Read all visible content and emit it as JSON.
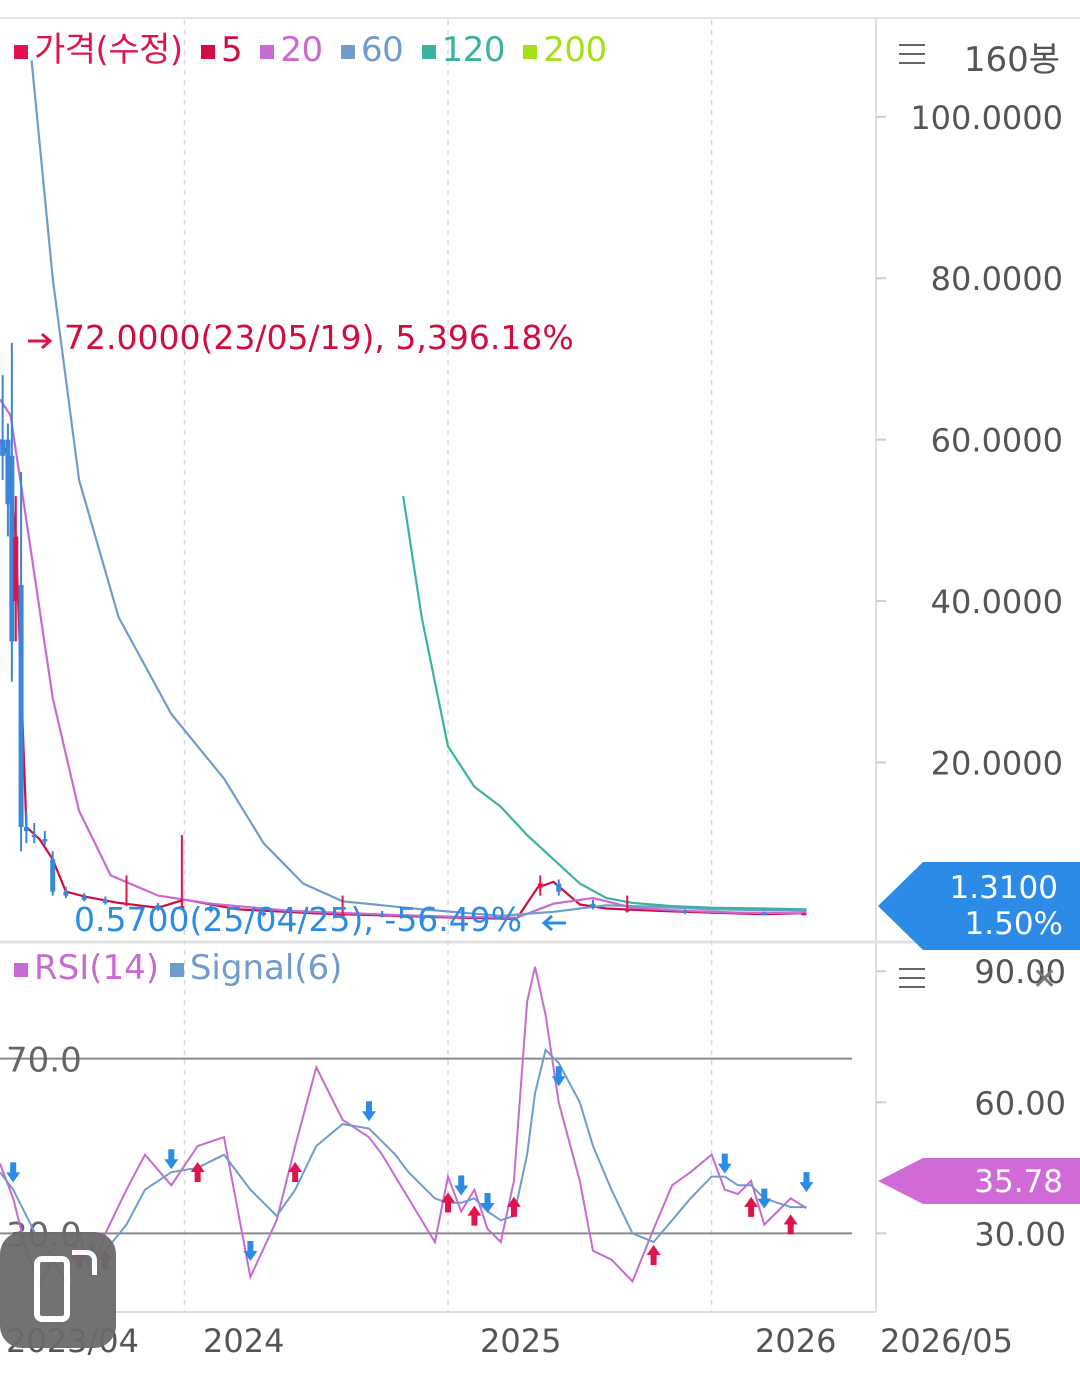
{
  "legend": {
    "items": [
      {
        "label": "가격(수정)",
        "color": "#e0144c"
      },
      {
        "label": "5",
        "color": "#d10c3e"
      },
      {
        "label": "20",
        "color": "#c96ad3"
      },
      {
        "label": "60",
        "color": "#6f9ccd"
      },
      {
        "label": "120",
        "color": "#3bb2a0"
      },
      {
        "label": "200",
        "color": "#a3e01a"
      }
    ]
  },
  "bars_label": "160봉",
  "current": {
    "price": "1.3100",
    "change": "1.50%",
    "color": "#2b8be6"
  },
  "rsi": {
    "legend": [
      {
        "label": "RSI(14)",
        "color": "#c96ad3"
      },
      {
        "label": "Signal(6)",
        "color": "#6f9ccd"
      }
    ],
    "current_value": "35.78",
    "current_color": "#cf6ad6",
    "ticks": [
      "90.00",
      "60.00",
      "30.00"
    ],
    "level_labels": [
      "70.0",
      "30.0"
    ]
  },
  "chart_data": [
    {
      "type": "line",
      "title": "",
      "y_ticks": [
        "100.0000",
        "80.0000",
        "60.0000",
        "40.0000",
        "20.0000"
      ],
      "ylim": [
        -2,
        112
      ],
      "x_ticks": [
        "2023/04",
        "2024",
        "2025",
        "2026",
        "2026/05"
      ],
      "x_tick_values": [
        2023.3,
        2024.0,
        2025.0,
        2026.0,
        2026.4
      ],
      "xlim": [
        2023.3,
        2026.62
      ],
      "grid": true,
      "annotations": {
        "high": "72.0000(23/05/19), 5,396.18%",
        "low": "0.5700(25/04/25), -56.49%"
      },
      "candles": [
        {
          "x": 2023.31,
          "o": 58,
          "h": 68,
          "l": 55,
          "c": 60,
          "up": false
        },
        {
          "x": 2023.33,
          "o": 60,
          "h": 62,
          "l": 48,
          "c": 52,
          "up": false
        },
        {
          "x": 2023.345,
          "o": 58,
          "h": 72,
          "l": 30,
          "c": 35,
          "up": false
        },
        {
          "x": 2023.36,
          "o": 48,
          "h": 53,
          "l": 35,
          "c": 40,
          "up": true
        },
        {
          "x": 2023.38,
          "o": 42,
          "h": 56,
          "l": 9,
          "c": 12,
          "up": false
        },
        {
          "x": 2023.4,
          "o": 12,
          "h": 14,
          "l": 10,
          "c": 11.5,
          "up": false
        },
        {
          "x": 2023.43,
          "o": 11,
          "h": 12.5,
          "l": 10,
          "c": 10.8,
          "up": false
        },
        {
          "x": 2023.47,
          "o": 10.5,
          "h": 11.5,
          "l": 9.8,
          "c": 10.2,
          "up": false
        },
        {
          "x": 2023.5,
          "o": 8,
          "h": 9,
          "l": 3.5,
          "c": 4,
          "up": false
        },
        {
          "x": 2023.55,
          "o": 4,
          "h": 4.6,
          "l": 3.2,
          "c": 3.5,
          "up": false
        },
        {
          "x": 2023.62,
          "o": 3.4,
          "h": 3.8,
          "l": 2.8,
          "c": 3.0,
          "up": false
        },
        {
          "x": 2023.7,
          "o": 3.0,
          "h": 3.4,
          "l": 2.4,
          "c": 2.6,
          "up": false
        },
        {
          "x": 2023.78,
          "o": 2.6,
          "h": 6,
          "l": 2.2,
          "c": 2.4,
          "up": true
        },
        {
          "x": 2023.9,
          "o": 2.3,
          "h": 2.6,
          "l": 1.6,
          "c": 1.9,
          "up": false
        },
        {
          "x": 2023.99,
          "o": 1.9,
          "h": 11,
          "l": 1.7,
          "c": 2.2,
          "up": true
        },
        {
          "x": 2024.1,
          "o": 2.1,
          "h": 2.6,
          "l": 1.4,
          "c": 1.6,
          "up": false
        },
        {
          "x": 2024.3,
          "o": 1.4,
          "h": 1.7,
          "l": 0.9,
          "c": 1.1,
          "up": false
        },
        {
          "x": 2024.6,
          "o": 1.0,
          "h": 3.5,
          "l": 0.8,
          "c": 1.2,
          "up": true
        },
        {
          "x": 2024.75,
          "o": 1.1,
          "h": 1.6,
          "l": 0.8,
          "c": 0.9,
          "up": false
        },
        {
          "x": 2025.25,
          "o": 0.7,
          "h": 0.8,
          "l": 0.57,
          "c": 0.62,
          "up": false
        },
        {
          "x": 2025.35,
          "o": 4.5,
          "h": 6,
          "l": 3.5,
          "c": 5,
          "up": true
        },
        {
          "x": 2025.42,
          "o": 5,
          "h": 5.5,
          "l": 3.5,
          "c": 4,
          "up": false
        },
        {
          "x": 2025.55,
          "o": 2.5,
          "h": 3,
          "l": 1.8,
          "c": 2,
          "up": false
        },
        {
          "x": 2025.68,
          "o": 1.8,
          "h": 3.5,
          "l": 1.4,
          "c": 1.6,
          "up": true
        },
        {
          "x": 2025.9,
          "o": 1.6,
          "h": 1.8,
          "l": 1.2,
          "c": 1.4,
          "up": false
        },
        {
          "x": 2026.2,
          "o": 1.3,
          "h": 1.5,
          "l": 1.1,
          "c": 1.2,
          "up": false
        },
        {
          "x": 2026.35,
          "o": 1.25,
          "h": 1.4,
          "l": 1.15,
          "c": 1.31,
          "up": true
        }
      ],
      "series": [
        {
          "name": "5",
          "color": "#d10c3e",
          "x": [
            2023.3,
            2023.33,
            2023.36,
            2023.4,
            2023.45,
            2023.5,
            2023.55,
            2023.62,
            2023.75,
            2023.9,
            2024.0,
            2024.2,
            2024.5,
            2024.8,
            2025.0,
            2025.26,
            2025.34,
            2025.4,
            2025.5,
            2025.6,
            2025.8,
            2026.0,
            2026.2,
            2026.36
          ],
          "y": [
            60,
            58,
            48,
            12,
            10.5,
            8,
            4,
            3.4,
            2.6,
            2.0,
            3.0,
            1.8,
            1.3,
            1.0,
            0.8,
            0.62,
            4.5,
            5.2,
            2.4,
            1.9,
            1.6,
            1.4,
            1.2,
            1.31
          ]
        },
        {
          "name": "20",
          "color": "#c96ad3",
          "x": [
            2023.3,
            2023.34,
            2023.4,
            2023.5,
            2023.6,
            2023.72,
            2023.9,
            2024.1,
            2024.4,
            2024.8,
            2025.0,
            2025.26,
            2025.4,
            2025.55,
            2025.7,
            2025.9,
            2026.1,
            2026.36
          ],
          "y": [
            65,
            63,
            50,
            28,
            14,
            6,
            3.5,
            2.5,
            1.6,
            1.1,
            0.9,
            0.75,
            2.5,
            3.2,
            2.0,
            1.6,
            1.4,
            1.3
          ]
        },
        {
          "name": "60",
          "color": "#6f9ccd",
          "x": [
            2023.42,
            2023.5,
            2023.6,
            2023.75,
            2023.95,
            2024.15,
            2024.3,
            2024.45,
            2024.6,
            2024.9,
            2025.2,
            2025.4,
            2025.6,
            2025.8,
            2026.0,
            2026.36
          ],
          "y": [
            107,
            80,
            55,
            38,
            26,
            18,
            10,
            5,
            2.8,
            1.8,
            1.0,
            1.5,
            2.3,
            2.1,
            1.8,
            1.6
          ]
        },
        {
          "name": "120",
          "color": "#3bb2a0",
          "x": [
            2024.83,
            2024.9,
            2025.0,
            2025.1,
            2025.2,
            2025.3,
            2025.4,
            2025.5,
            2025.6,
            2025.7,
            2025.85,
            2026.0,
            2026.2,
            2026.36
          ],
          "y": [
            53,
            38,
            22,
            17,
            14.5,
            11,
            8,
            5,
            3.2,
            2.6,
            2.2,
            2.0,
            1.9,
            1.8
          ]
        }
      ]
    },
    {
      "type": "line",
      "title": "",
      "ylim": [
        12,
        96
      ],
      "levels": [
        70,
        30
      ],
      "x_ticks": [
        "2023/04",
        "2024",
        "2025",
        "2026",
        "2026/05"
      ],
      "series": [
        {
          "name": "RSI(14)",
          "color": "#c96ad3",
          "x": [
            2023.3,
            2023.35,
            2023.4,
            2023.45,
            2023.5,
            2023.55,
            2023.6,
            2023.65,
            2023.7,
            2023.78,
            2023.85,
            2023.95,
            2024.05,
            2024.15,
            2024.25,
            2024.35,
            2024.42,
            2024.5,
            2024.6,
            2024.7,
            2024.75,
            2024.8,
            2024.85,
            2024.95,
            2025.0,
            2025.05,
            2025.1,
            2025.15,
            2025.2,
            2025.25,
            2025.3,
            2025.33,
            2025.37,
            2025.42,
            2025.5,
            2025.55,
            2025.62,
            2025.7,
            2025.78,
            2025.85,
            2025.92,
            2026.0,
            2026.05,
            2026.1,
            2026.15,
            2026.2,
            2026.25,
            2026.3,
            2026.36
          ],
          "y": [
            46,
            38,
            26,
            18,
            24,
            19,
            30,
            20,
            30,
            40,
            48,
            41,
            50,
            52,
            20,
            33,
            50,
            68,
            56,
            52,
            48,
            43,
            38,
            28,
            43,
            35,
            40,
            31,
            28,
            42,
            83,
            91,
            80,
            60,
            42,
            26,
            24,
            19,
            31,
            41,
            44,
            48,
            40,
            39,
            42,
            32,
            35,
            38,
            35.78
          ]
        },
        {
          "name": "Signal(6)",
          "color": "#6f9ccd",
          "x": [
            2023.3,
            2023.35,
            2023.4,
            2023.45,
            2023.5,
            2023.55,
            2023.6,
            2023.65,
            2023.7,
            2023.78,
            2023.85,
            2023.95,
            2024.05,
            2024.15,
            2024.25,
            2024.35,
            2024.42,
            2024.5,
            2024.6,
            2024.7,
            2024.75,
            2024.8,
            2024.85,
            2024.95,
            2025.0,
            2025.05,
            2025.1,
            2025.15,
            2025.2,
            2025.25,
            2025.3,
            2025.33,
            2025.37,
            2025.42,
            2025.5,
            2025.55,
            2025.62,
            2025.7,
            2025.78,
            2025.85,
            2025.92,
            2026.0,
            2026.05,
            2026.1,
            2026.15,
            2026.2,
            2026.25,
            2026.3,
            2026.36
          ],
          "y": [
            44,
            40,
            34,
            28,
            25,
            23,
            24,
            24,
            26,
            32,
            40,
            44,
            45,
            48,
            40,
            34,
            40,
            50,
            55,
            54,
            51,
            48,
            44,
            38,
            37,
            37,
            38,
            35,
            33,
            34,
            48,
            62,
            72,
            69,
            60,
            50,
            40,
            30,
            28,
            33,
            38,
            43,
            43,
            41,
            41,
            38,
            37,
            36,
            36
          ]
        }
      ]
    }
  ]
}
